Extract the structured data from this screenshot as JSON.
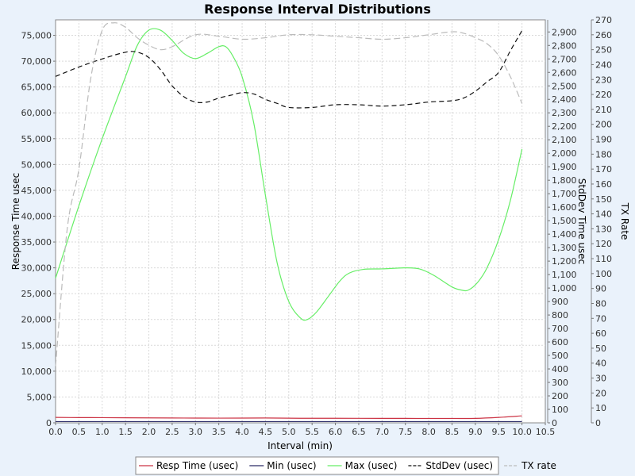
{
  "chart_data": {
    "type": "line",
    "title": "Response Interval Distributions",
    "xlabel": "Interval (min)",
    "xlim": [
      0,
      10.5
    ],
    "x_ticks": [
      "0.0",
      "0.5",
      "1.0",
      "1.5",
      "2.0",
      "2.5",
      "3.0",
      "3.5",
      "4.0",
      "4.5",
      "5.0",
      "5.5",
      "6.0",
      "6.5",
      "7.0",
      "7.5",
      "8.0",
      "8.5",
      "9.0",
      "9.5",
      "10.0",
      "10.5"
    ],
    "axes": {
      "left": {
        "label": "Response Time usec",
        "ylim": [
          0,
          78000
        ],
        "ticks": [
          "0",
          "5,000",
          "10,000",
          "15,000",
          "20,000",
          "25,000",
          "30,000",
          "35,000",
          "40,000",
          "45,000",
          "50,000",
          "55,000",
          "60,000",
          "65,000",
          "70,000",
          "75,000"
        ]
      },
      "stddev": {
        "label": "StdDev Time usec",
        "ylim": [
          0,
          2990
        ],
        "ticks": [
          "0",
          "100",
          "200",
          "300",
          "400",
          "500",
          "600",
          "700",
          "800",
          "900",
          "1,000",
          "1,100",
          "1,200",
          "1,300",
          "1,400",
          "1,500",
          "1,600",
          "1,700",
          "1,800",
          "1,900",
          "2,000",
          "2,100",
          "2,200",
          "2,300",
          "2,400",
          "2,500",
          "2,600",
          "2,700",
          "2,800",
          "2,900"
        ]
      },
      "txrate": {
        "label": "TX Rate",
        "ylim": [
          0,
          270
        ],
        "ticks": [
          "0",
          "10",
          "20",
          "30",
          "40",
          "50",
          "60",
          "70",
          "80",
          "90",
          "100",
          "110",
          "120",
          "130",
          "140",
          "150",
          "160",
          "170",
          "180",
          "190",
          "200",
          "210",
          "220",
          "230",
          "240",
          "250",
          "260",
          "270"
        ]
      }
    },
    "grid": true,
    "legend_position": "bottom",
    "series": [
      {
        "name": "Resp Time (usec)",
        "axis": "left",
        "color": "#cc3344",
        "dash": "",
        "points": [
          [
            0,
            1050
          ],
          [
            0.5,
            1020
          ],
          [
            1,
            1010
          ],
          [
            1.5,
            980
          ],
          [
            2,
            960
          ],
          [
            2.5,
            940
          ],
          [
            3,
            920
          ],
          [
            3.5,
            910
          ],
          [
            4,
            920
          ],
          [
            4.5,
            940
          ],
          [
            5,
            900
          ],
          [
            5.5,
            880
          ],
          [
            6,
            880
          ],
          [
            6.5,
            870
          ],
          [
            7,
            860
          ],
          [
            7.5,
            860
          ],
          [
            8,
            850
          ],
          [
            8.5,
            850
          ],
          [
            9,
            860
          ],
          [
            9.5,
            1050
          ],
          [
            10,
            1350
          ]
        ]
      },
      {
        "name": "Min (usec)",
        "axis": "left",
        "color": "#2a2a66",
        "dash": "",
        "points": [
          [
            0,
            240
          ],
          [
            1,
            240
          ],
          [
            2,
            240
          ],
          [
            3,
            240
          ],
          [
            4,
            240
          ],
          [
            5,
            240
          ],
          [
            6,
            240
          ],
          [
            7,
            240
          ],
          [
            8,
            240
          ],
          [
            9,
            240
          ],
          [
            10,
            240
          ]
        ]
      },
      {
        "name": "Max (usec)",
        "axis": "left",
        "color": "#66ee66",
        "dash": "",
        "points": [
          [
            0,
            28000
          ],
          [
            0.5,
            42000
          ],
          [
            1,
            55000
          ],
          [
            1.5,
            67000
          ],
          [
            1.75,
            73000
          ],
          [
            2,
            76000
          ],
          [
            2.25,
            76000
          ],
          [
            2.5,
            74000
          ],
          [
            2.75,
            71500
          ],
          [
            3,
            70500
          ],
          [
            3.25,
            71500
          ],
          [
            3.5,
            72800
          ],
          [
            3.65,
            72800
          ],
          [
            3.8,
            71000
          ],
          [
            4,
            67000
          ],
          [
            4.25,
            58000
          ],
          [
            4.5,
            44000
          ],
          [
            4.75,
            31000
          ],
          [
            5,
            23500
          ],
          [
            5.25,
            20300
          ],
          [
            5.4,
            20000
          ],
          [
            5.6,
            21500
          ],
          [
            5.85,
            24500
          ],
          [
            6.1,
            27500
          ],
          [
            6.3,
            29000
          ],
          [
            6.6,
            29700
          ],
          [
            7,
            29800
          ],
          [
            7.5,
            30000
          ],
          [
            7.8,
            29800
          ],
          [
            8.1,
            28600
          ],
          [
            8.5,
            26300
          ],
          [
            8.7,
            25700
          ],
          [
            8.85,
            25700
          ],
          [
            9.05,
            27200
          ],
          [
            9.25,
            30000
          ],
          [
            9.5,
            35500
          ],
          [
            9.75,
            43000
          ],
          [
            10,
            53000
          ]
        ]
      },
      {
        "name": "StdDev (usec)",
        "axis": "stddev",
        "color": "#111111",
        "dash": "6,4",
        "points": [
          [
            0,
            2570
          ],
          [
            0.5,
            2640
          ],
          [
            1,
            2700
          ],
          [
            1.5,
            2750
          ],
          [
            1.75,
            2750
          ],
          [
            2,
            2710
          ],
          [
            2.25,
            2620
          ],
          [
            2.5,
            2500
          ],
          [
            2.75,
            2420
          ],
          [
            3,
            2380
          ],
          [
            3.25,
            2380
          ],
          [
            3.5,
            2410
          ],
          [
            3.75,
            2430
          ],
          [
            4,
            2450
          ],
          [
            4.25,
            2440
          ],
          [
            4.5,
            2400
          ],
          [
            4.75,
            2370
          ],
          [
            5,
            2340
          ],
          [
            5.5,
            2340
          ],
          [
            6,
            2360
          ],
          [
            6.5,
            2360
          ],
          [
            7,
            2350
          ],
          [
            7.5,
            2360
          ],
          [
            8,
            2380
          ],
          [
            8.5,
            2390
          ],
          [
            8.75,
            2410
          ],
          [
            9,
            2460
          ],
          [
            9.25,
            2530
          ],
          [
            9.5,
            2600
          ],
          [
            9.75,
            2760
          ],
          [
            10,
            2910
          ]
        ]
      },
      {
        "name": "TX rate",
        "axis": "txrate",
        "color": "#bbbbbb",
        "dash": "8,4",
        "points": [
          [
            0,
            38
          ],
          [
            0.25,
            130
          ],
          [
            0.5,
            170
          ],
          [
            0.75,
            230
          ],
          [
            1,
            263
          ],
          [
            1.25,
            268
          ],
          [
            1.5,
            265
          ],
          [
            1.75,
            258
          ],
          [
            2,
            253
          ],
          [
            2.25,
            250
          ],
          [
            2.5,
            252
          ],
          [
            3,
            260
          ],
          [
            3.5,
            259
          ],
          [
            4,
            257
          ],
          [
            4.5,
            258
          ],
          [
            5,
            260
          ],
          [
            5.5,
            260
          ],
          [
            6,
            259
          ],
          [
            6.5,
            258
          ],
          [
            7,
            257
          ],
          [
            7.5,
            258
          ],
          [
            8,
            260
          ],
          [
            8.5,
            262
          ],
          [
            8.75,
            261
          ],
          [
            9,
            258
          ],
          [
            9.25,
            254
          ],
          [
            9.5,
            246
          ],
          [
            9.75,
            232
          ],
          [
            10,
            214
          ]
        ]
      }
    ]
  }
}
